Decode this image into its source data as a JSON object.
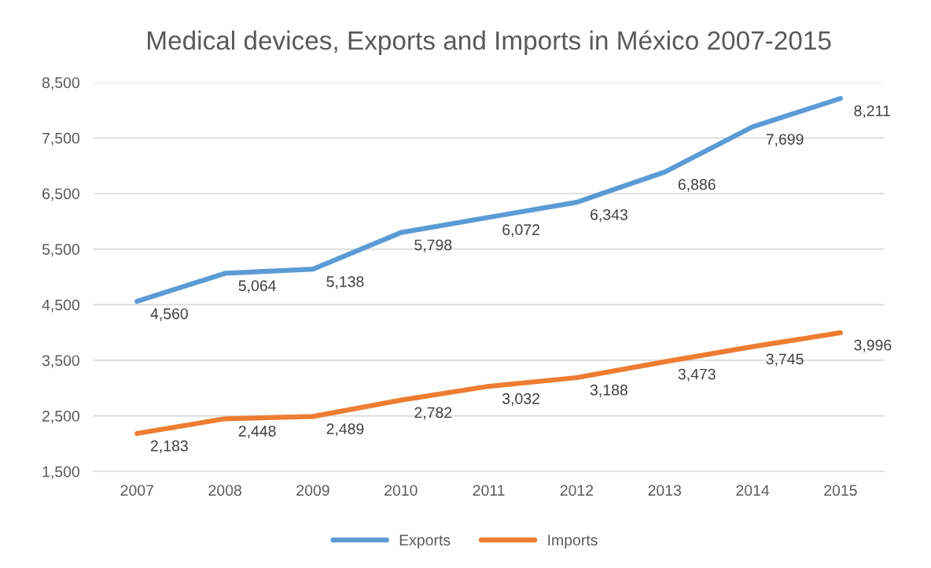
{
  "chart_data": {
    "type": "line",
    "title": "Medical devices, Exports and Imports in México 2007-2015",
    "categories": [
      "2007",
      "2008",
      "2009",
      "2010",
      "2011",
      "2012",
      "2013",
      "2014",
      "2015"
    ],
    "series": [
      {
        "name": "Exports",
        "color": "#5b9bd5",
        "values": [
          4560,
          5064,
          5138,
          5798,
          6072,
          6343,
          6886,
          7699,
          8211
        ],
        "value_labels": [
          "4,560",
          "5,064",
          "5,138",
          "5,798",
          "6,072",
          "6,343",
          "6,886",
          "7,699",
          "8,211"
        ]
      },
      {
        "name": "Imports",
        "color": "#ed7d31",
        "values": [
          2183,
          2448,
          2489,
          2782,
          3032,
          3188,
          3473,
          3745,
          3996
        ],
        "value_labels": [
          "2,183",
          "2,448",
          "2,489",
          "2,782",
          "3,032",
          "3,188",
          "3,473",
          "3,745",
          "3,996"
        ]
      }
    ],
    "ylim": [
      1500,
      8500
    ],
    "yticks": [
      {
        "value": 1500,
        "label": "1,500"
      },
      {
        "value": 2500,
        "label": "2,500"
      },
      {
        "value": 3500,
        "label": "3,500"
      },
      {
        "value": 4500,
        "label": "4,500"
      },
      {
        "value": 5500,
        "label": "5,500"
      },
      {
        "value": 6500,
        "label": "6,500"
      },
      {
        "value": 7500,
        "label": "7,500"
      },
      {
        "value": 8500,
        "label": "8,500"
      }
    ],
    "grid": "y",
    "legend": "bottom",
    "marker": "none",
    "line_style": "solid"
  }
}
